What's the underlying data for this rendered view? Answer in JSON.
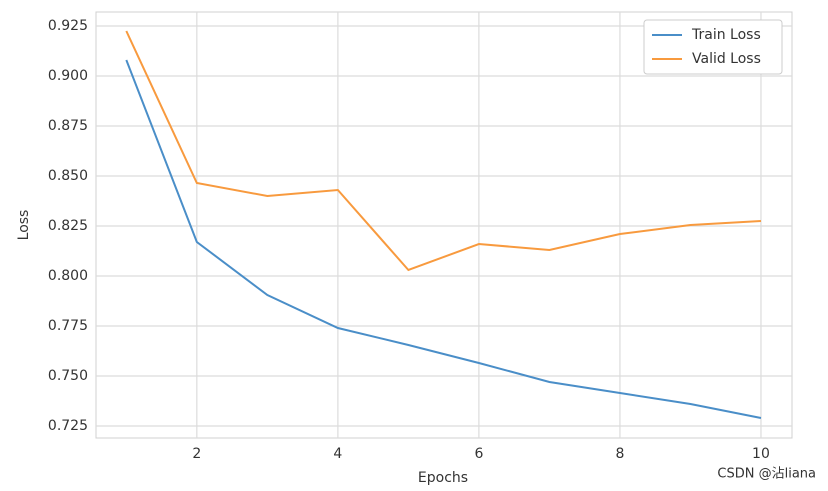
{
  "chart_data": {
    "type": "line",
    "x_label": "Epochs",
    "y_label": "Loss",
    "x": [
      1,
      2,
      3,
      4,
      5,
      6,
      7,
      8,
      9,
      10
    ],
    "series": [
      {
        "name": "Train Loss",
        "color": "#4a8ec8",
        "values": [
          0.908,
          0.817,
          0.7905,
          0.774,
          0.7655,
          0.7565,
          0.747,
          0.7415,
          0.736,
          0.729
        ]
      },
      {
        "name": "Valid Loss",
        "color": "#f89a3e",
        "values": [
          0.9225,
          0.8465,
          0.84,
          0.843,
          0.803,
          0.816,
          0.813,
          0.821,
          0.8255,
          0.8275
        ]
      }
    ],
    "xlim": [
      0.57,
      10.44
    ],
    "xticks": [
      2,
      4,
      6,
      8,
      10
    ],
    "ylim": [
      0.719,
      0.932
    ],
    "yticks": [
      {
        "value": 0.725,
        "label": "0.725"
      },
      {
        "value": 0.75,
        "label": "0.750"
      },
      {
        "value": 0.775,
        "label": "0.775"
      },
      {
        "value": 0.8,
        "label": "0.800"
      },
      {
        "value": 0.825,
        "label": "0.825"
      },
      {
        "value": 0.85,
        "label": "0.850"
      },
      {
        "value": 0.875,
        "label": "0.875"
      },
      {
        "value": 0.9,
        "label": "0.900"
      },
      {
        "value": 0.925,
        "label": "0.925"
      }
    ],
    "grid": true,
    "legend": "upper right",
    "watermark": "CSDN @沾liana"
  }
}
